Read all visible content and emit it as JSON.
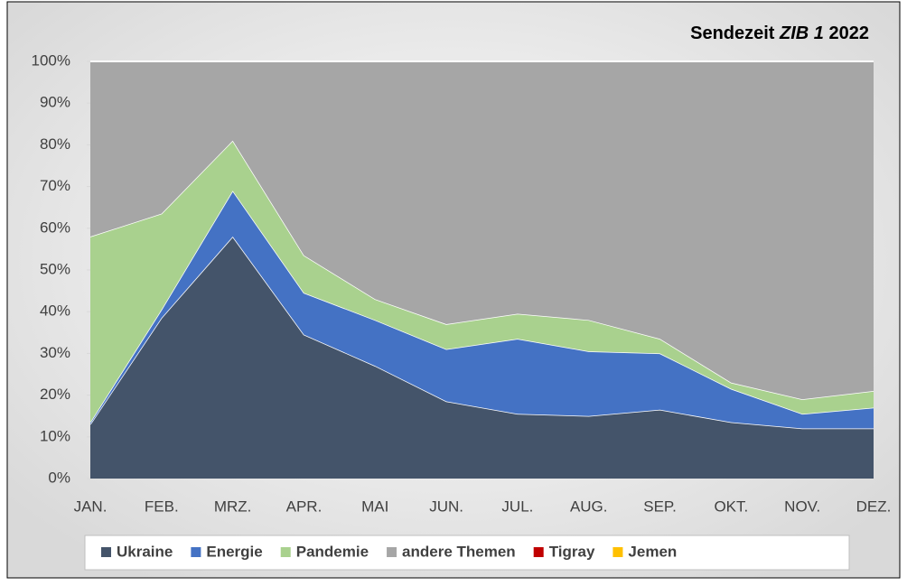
{
  "chart_data": {
    "type": "area",
    "stacked": true,
    "title": [
      "Sendezeit",
      "ZIB 1",
      "2022"
    ],
    "categories": [
      "JAN.",
      "FEB.",
      "MRZ.",
      "APR.",
      "MAI",
      "JUN.",
      "JUL.",
      "AUG.",
      "SEP.",
      "OKT.",
      "NOV.",
      "DEZ."
    ],
    "series": [
      {
        "name": "Ukraine",
        "color": "#44546a",
        "values": [
          13,
          38.5,
          58,
          34.5,
          27,
          18.5,
          15.5,
          15,
          16.5,
          13.5,
          12,
          12
        ]
      },
      {
        "name": "Energie",
        "color": "#4472c4",
        "values": [
          0.5,
          2,
          11,
          10,
          11,
          12.5,
          18,
          15.5,
          13.5,
          8,
          3.5,
          5
        ]
      },
      {
        "name": "Pandemie",
        "color": "#a9d18e",
        "values": [
          44.5,
          23,
          12,
          9,
          5,
          6,
          6,
          7.5,
          3.5,
          1.5,
          3.5,
          4
        ]
      },
      {
        "name": "andere Themen",
        "color": "#a6a6a6",
        "values": [
          42,
          36.5,
          19,
          46.5,
          57,
          63,
          60.5,
          62,
          66.5,
          77,
          81,
          79
        ]
      },
      {
        "name": "Tigray",
        "color": "#c00000",
        "values": [
          0,
          0,
          0,
          0,
          0,
          0,
          0,
          0,
          0,
          0,
          0,
          0
        ]
      },
      {
        "name": "Jemen",
        "color": "#ffc000",
        "values": [
          0,
          0,
          0,
          0,
          0,
          0,
          0,
          0,
          0,
          0,
          0,
          0
        ]
      }
    ],
    "ylim": [
      0,
      100
    ],
    "yticks": [
      {
        "value": 0,
        "label": "0%"
      },
      {
        "value": 10,
        "label": "10%"
      },
      {
        "value": 20,
        "label": "20%"
      },
      {
        "value": 30,
        "label": "30%"
      },
      {
        "value": 40,
        "label": "40%"
      },
      {
        "value": 50,
        "label": "50%"
      },
      {
        "value": 60,
        "label": "60%"
      },
      {
        "value": 70,
        "label": "70%"
      },
      {
        "value": 80,
        "label": "80%"
      },
      {
        "value": 90,
        "label": "90%"
      },
      {
        "value": 100,
        "label": "100%"
      }
    ],
    "legend": "bottom"
  }
}
